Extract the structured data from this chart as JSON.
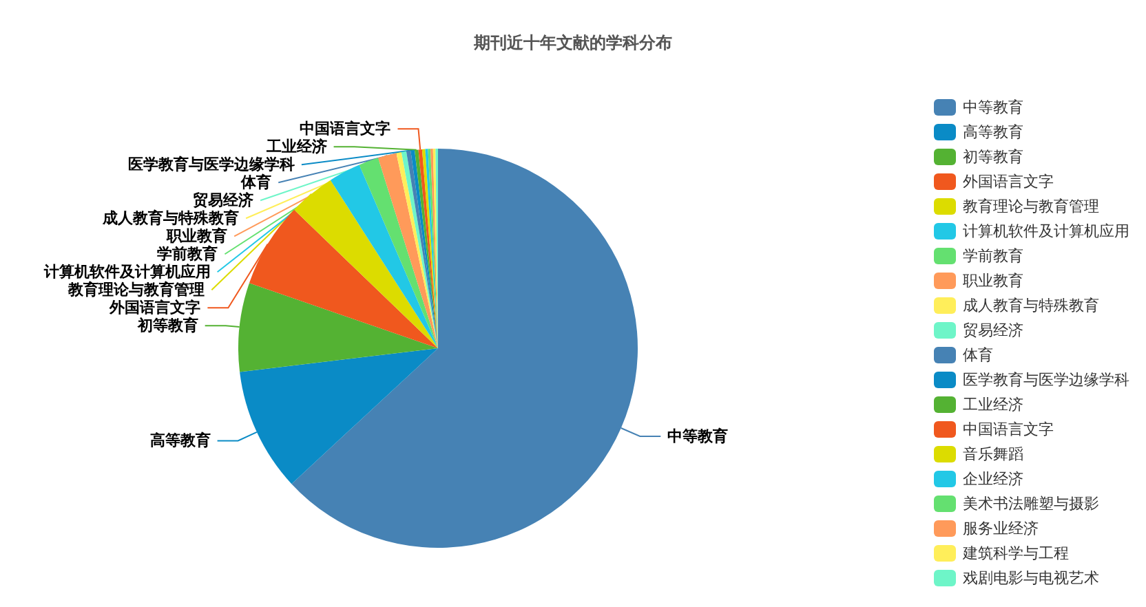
{
  "chart_data": {
    "type": "pie",
    "title": "期刊近十年文献的学科分布",
    "legend": "right",
    "categories": [
      "中等教育",
      "高等教育",
      "初等教育",
      "外国语言文字",
      "教育理论与教育管理",
      "计算机软件及计算机应用",
      "学前教育",
      "职业教育",
      "成人教育与特殊教育",
      "贸易经济",
      "体育",
      "医学教育与医学边缘学科",
      "工业经济",
      "中国语言文字",
      "音乐舞蹈",
      "企业经济",
      "美术书法雕塑与摄影",
      "服务业经济",
      "建筑科学与工程",
      "戏剧电影与电视艺术"
    ],
    "values": [
      63.1,
      10,
      7.2,
      6.9,
      3.75,
      2.6,
      1.6,
      1.5,
      0.41,
      0.4,
      0.35,
      0.32,
      0.3,
      0.3,
      0.25,
      0.22,
      0.2,
      0.2,
      0.2,
      0.2
    ],
    "colors": [
      "#4682b4",
      "#0a8bc6",
      "#54b233",
      "#f0581e",
      "#dcdc00",
      "#22c8e6",
      "#64e070",
      "#ff9a5a",
      "#ffee5a",
      "#6ef5c8",
      "#4682b4",
      "#0a8bc6",
      "#54b233",
      "#f0581e",
      "#dcdc00",
      "#22c8e6",
      "#64e070",
      "#ff9a5a",
      "#ffee5a",
      "#6ef5c8"
    ]
  }
}
